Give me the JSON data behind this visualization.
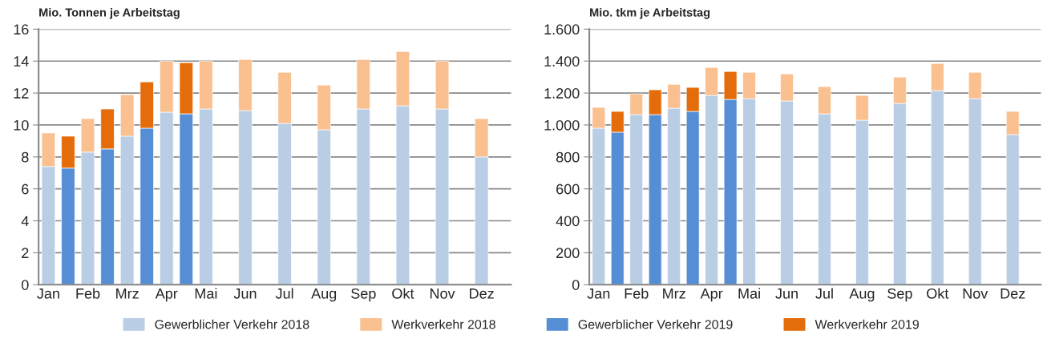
{
  "chart_data": [
    {
      "type": "bar",
      "title": "Mio. Tonnen je Arbeitstag",
      "stacked": true,
      "grid": "y",
      "legend": "bottom",
      "categories": [
        "Jan",
        null,
        "Feb",
        null,
        "Mrz",
        null,
        "Apr",
        null,
        "Mai",
        null,
        "Jun",
        null,
        "Jul",
        null,
        "Aug",
        null,
        "Sep",
        null,
        "Okt",
        null,
        "Nov",
        null,
        "Dez",
        null
      ],
      "ylim": [
        0,
        16
      ],
      "yticks": [
        0,
        2,
        4,
        6,
        8,
        10,
        12,
        14,
        16
      ],
      "series": [
        {
          "name": "Gewerblicher Verkehr 2018",
          "color": "#b9cde5",
          "values": [
            7.4,
            null,
            8.3,
            null,
            9.3,
            null,
            10.8,
            null,
            11.0,
            null,
            10.9,
            null,
            10.1,
            null,
            9.7,
            null,
            11.0,
            null,
            11.2,
            null,
            11.0,
            null,
            8.0,
            null
          ]
        },
        {
          "name": "Werkverkehr 2018",
          "color": "#fac090",
          "values": [
            2.1,
            null,
            2.1,
            null,
            2.6,
            null,
            3.2,
            null,
            3.0,
            null,
            3.2,
            null,
            3.2,
            null,
            2.8,
            null,
            3.1,
            null,
            3.4,
            null,
            3.0,
            null,
            2.4,
            null
          ]
        },
        {
          "name": "Gewerblicher Verkehr 2019",
          "color": "#558ed5",
          "values": [
            null,
            7.3,
            null,
            8.5,
            null,
            9.8,
            null,
            10.7,
            null,
            null,
            null,
            null,
            null,
            null,
            null,
            null,
            null,
            null,
            null,
            null,
            null,
            null,
            null,
            null
          ]
        },
        {
          "name": "Werkverkehr 2019",
          "color": "#e46c0a",
          "values": [
            null,
            2.0,
            null,
            2.5,
            null,
            2.9,
            null,
            3.2,
            null,
            null,
            null,
            null,
            null,
            null,
            null,
            null,
            null,
            null,
            null,
            null,
            null,
            null,
            null,
            null
          ]
        }
      ]
    },
    {
      "type": "bar",
      "title": "Mio. tkm je Arbeitstag",
      "stacked": true,
      "grid": "y",
      "categories": [
        "Jan",
        null,
        "Feb",
        null,
        "Mrz",
        null,
        "Apr",
        null,
        "Mai",
        null,
        "Jun",
        null,
        "Jul",
        null,
        "Aug",
        null,
        "Sep",
        null,
        "Okt",
        null,
        "Nov",
        null,
        "Dez",
        null
      ],
      "ylim": [
        0,
        1600
      ],
      "yticks": [
        0,
        200,
        400,
        600,
        800,
        {
          "value": 1000,
          "label": "1.000"
        },
        {
          "value": 1200,
          "label": "1.200"
        },
        {
          "value": 1400,
          "label": "1.400"
        },
        {
          "value": 1600,
          "label": "1.600"
        }
      ],
      "series": [
        {
          "color": "#b9cde5",
          "values": [
            980,
            null,
            1065,
            null,
            1105,
            null,
            1185,
            null,
            1165,
            null,
            1150,
            null,
            1070,
            null,
            1030,
            null,
            1135,
            null,
            1215,
            null,
            1165,
            null,
            940,
            null
          ]
        },
        {
          "color": "#fac090",
          "values": [
            130,
            null,
            130,
            null,
            150,
            null,
            175,
            null,
            165,
            null,
            170,
            null,
            170,
            null,
            155,
            null,
            165,
            null,
            170,
            null,
            165,
            null,
            145,
            null
          ]
        },
        {
          "color": "#558ed5",
          "values": [
            null,
            955,
            null,
            1065,
            null,
            1085,
            null,
            1160,
            null,
            null,
            null,
            null,
            null,
            null,
            null,
            null,
            null,
            null,
            null,
            null,
            null,
            null,
            null,
            null
          ]
        },
        {
          "color": "#e46c0a",
          "values": [
            null,
            130,
            null,
            155,
            null,
            150,
            null,
            175,
            null,
            null,
            null,
            null,
            null,
            null,
            null,
            null,
            null,
            null,
            null,
            null,
            null,
            null,
            null,
            null
          ]
        }
      ]
    }
  ]
}
